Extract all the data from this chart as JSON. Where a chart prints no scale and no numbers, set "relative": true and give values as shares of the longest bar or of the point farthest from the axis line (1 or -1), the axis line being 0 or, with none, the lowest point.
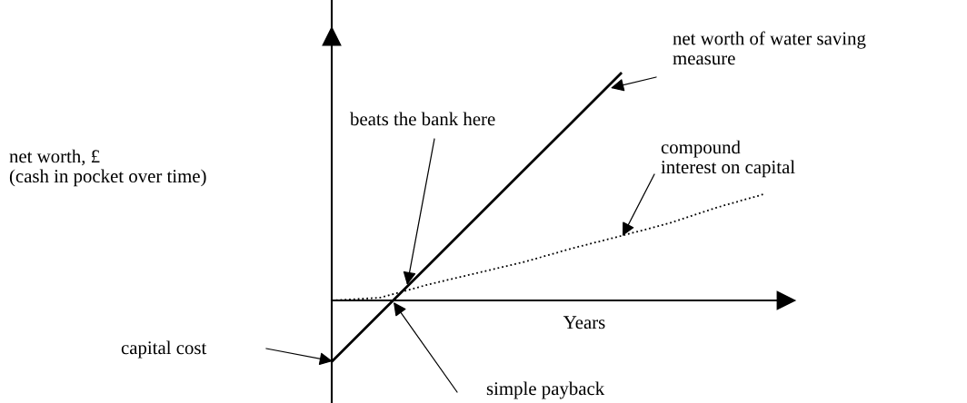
{
  "chart_data": {
    "type": "line",
    "relative": true,
    "xlabel": "Years",
    "categories": [
      null,
      null,
      null,
      null,
      null,
      null,
      null,
      null,
      null,
      null
    ],
    "series": [
      {
        "color": "#000000",
        "line_style": "solid",
        "values": [
          -0.27,
          -0.058,
          0.153,
          0.365,
          0.577,
          0.788,
          1.0,
          null,
          null,
          null
        ]
      },
      {
        "color": "#000000",
        "line_style": "dotted",
        "values": [
          0,
          0.012,
          0.07,
          0.12,
          0.17,
          0.23,
          0.284,
          0.34,
          0.41,
          0.47
        ]
      }
    ],
    "annotations": [
      "net worth, £\n(cash in pocket over time)",
      "net worth of water saving\nmeasure",
      "beats the bank here",
      "compound\ninterest on capital",
      "simple payback",
      "capital cost"
    ]
  }
}
